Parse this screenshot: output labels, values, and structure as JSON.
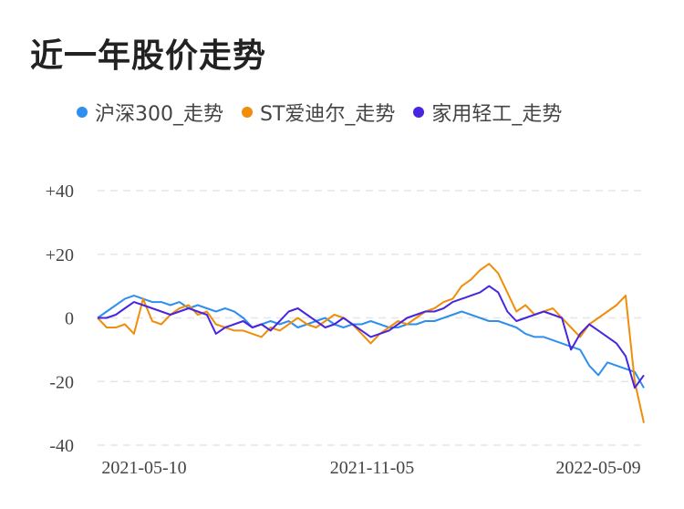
{
  "title": "近一年股价走势",
  "chart_data": {
    "type": "line",
    "x_ticks": [
      "2021-05-10",
      "2021-11-05",
      "2022-05-09"
    ],
    "y_ticks": [
      "+40",
      "+20",
      "0",
      "-20",
      "-40"
    ],
    "ylim": [
      -40,
      40
    ],
    "grid": true,
    "legend_position": "top",
    "series": [
      {
        "name": "沪深300_走势",
        "color": "#2e8fee",
        "values": [
          0,
          2,
          4,
          6,
          7,
          6,
          5,
          5,
          4,
          5,
          3,
          4,
          3,
          2,
          3,
          2,
          0,
          -3,
          -2,
          -1,
          -2,
          -1,
          -3,
          -2,
          -1,
          0,
          -2,
          -3,
          -2,
          -2,
          -1,
          -2,
          -3,
          -3,
          -2,
          -2,
          -1,
          -1,
          0,
          1,
          2,
          1,
          0,
          -1,
          -1,
          -2,
          -3,
          -5,
          -6,
          -6,
          -7,
          -8,
          -9,
          -10,
          -15,
          -18,
          -14,
          -15,
          -16,
          -17,
          -22
        ]
      },
      {
        "name": "ST爱迪尔_走势",
        "color": "#f08d0b",
        "values": [
          0,
          -3,
          -3,
          -2,
          -5,
          6,
          -1,
          -2,
          1,
          3,
          4,
          1,
          2,
          -2,
          -3,
          -4,
          -4,
          -5,
          -6,
          -3,
          -4,
          -2,
          0,
          -2,
          -3,
          -1,
          1,
          0,
          -2,
          -5,
          -8,
          -5,
          -3,
          -1,
          -2,
          0,
          2,
          3,
          5,
          6,
          10,
          12,
          15,
          17,
          14,
          8,
          2,
          4,
          1,
          2,
          3,
          0,
          -3,
          -6,
          -2,
          0,
          2,
          4,
          7,
          -20,
          -33
        ]
      },
      {
        "name": "家用轻工_走势",
        "color": "#4825e0",
        "values": [
          0,
          0,
          1,
          3,
          5,
          4,
          3,
          2,
          1,
          2,
          3,
          2,
          1,
          -5,
          -3,
          -2,
          -1,
          -3,
          -2,
          -4,
          -1,
          2,
          3,
          1,
          -1,
          -3,
          -2,
          0,
          -2,
          -4,
          -6,
          -5,
          -4,
          -2,
          0,
          1,
          2,
          2,
          3,
          5,
          6,
          7,
          8,
          10,
          8,
          2,
          -1,
          0,
          1,
          2,
          1,
          0,
          -10,
          -5,
          -2,
          -4,
          -6,
          -8,
          -12,
          -22,
          -18
        ]
      }
    ]
  }
}
